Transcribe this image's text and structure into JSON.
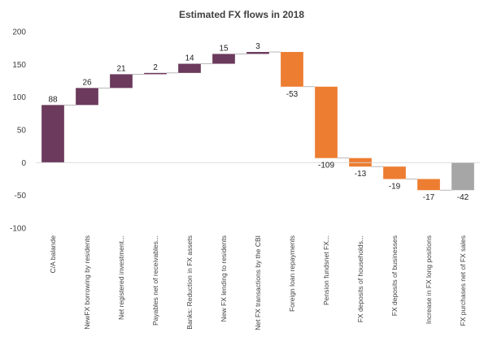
{
  "chart_data": {
    "type": "waterfall",
    "title": "Estimated FX flows in 2018",
    "xlabel": "",
    "ylabel": "",
    "ylim": [
      -100,
      200
    ],
    "yticks": [
      -100,
      -50,
      0,
      50,
      100,
      150,
      200
    ],
    "grid": false,
    "legend": "none",
    "categories": [
      "C/A balande",
      "NewFX borrowing by residents",
      "Net registered investment...",
      "Payables net of receivables...",
      "Banks: Reduction in FX assets",
      "New FX lending to residents",
      "Net FX transactions by the CBI",
      "Foreign loan repayments",
      "Pension fundsnet FX...",
      "FX deposits of households...",
      "FX deposits of businesses",
      "Increase in FX long positions",
      "FX purchases net of FX sales"
    ],
    "values": [
      88,
      26,
      21,
      2,
      14,
      15,
      3,
      -53,
      -109,
      -13,
      -19,
      -17,
      -42
    ],
    "labels": [
      "88",
      "26",
      "21",
      "2",
      "14",
      "15",
      "3",
      "-53",
      "-109",
      "-13",
      "-19",
      "-17",
      "-42"
    ],
    "bar_types": [
      "total",
      "increase",
      "increase",
      "increase",
      "increase",
      "increase",
      "increase",
      "decrease",
      "decrease",
      "decrease",
      "decrease",
      "decrease",
      "total"
    ],
    "colors": {
      "increase": "#6b3a5c",
      "decrease": "#ed7d31",
      "final_total": "#a6a6a6",
      "axis": "#404040",
      "connector": "#a6a6a6"
    }
  }
}
